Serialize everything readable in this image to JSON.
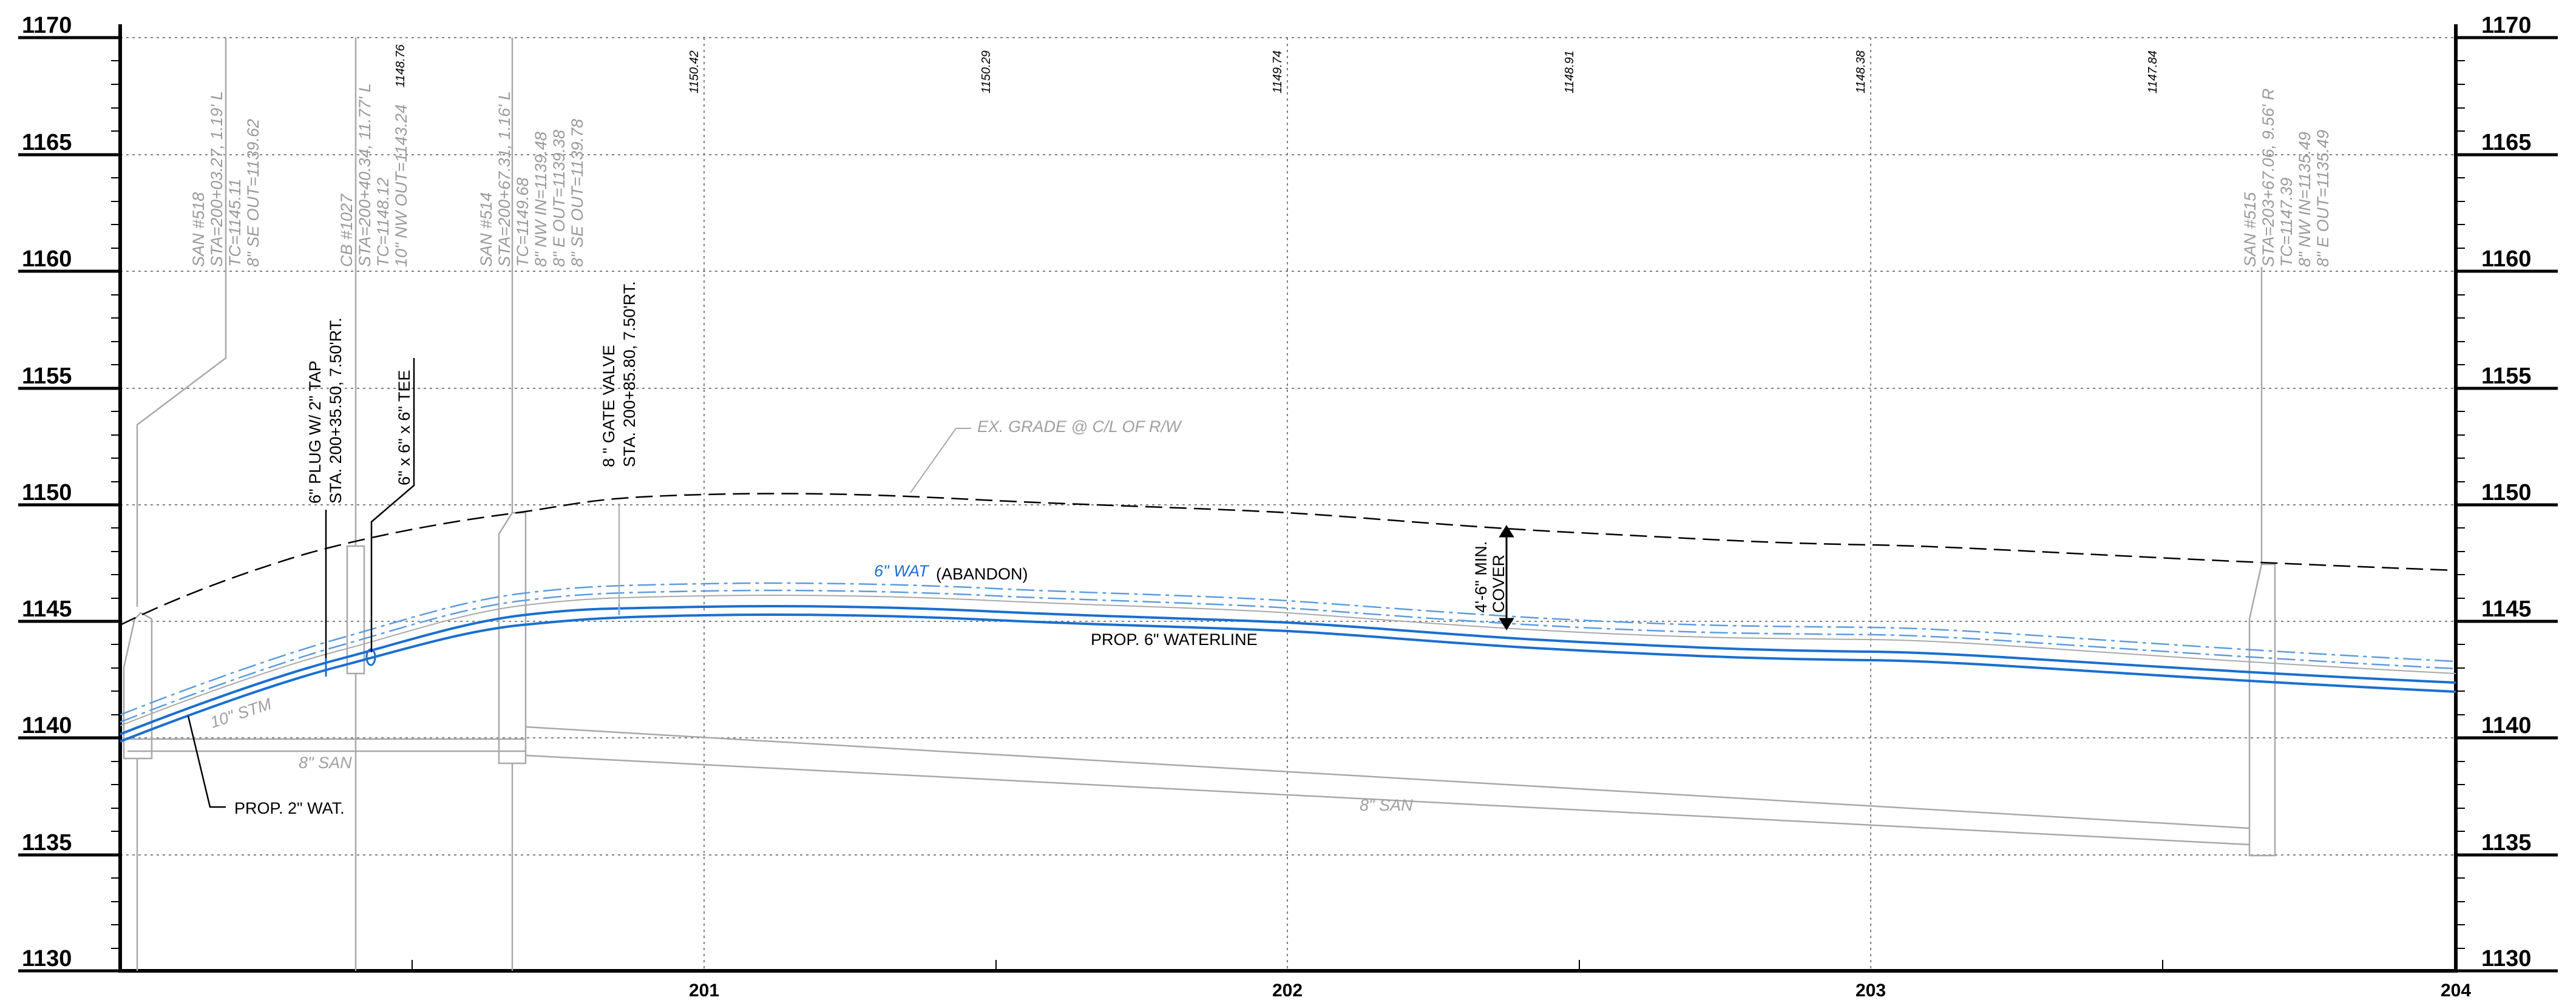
{
  "axes": {
    "elevations": [
      "1170",
      "1165",
      "1160",
      "1155",
      "1150",
      "1145",
      "1140",
      "1135",
      "1130"
    ],
    "stations": [
      "201",
      "202",
      "203",
      "204"
    ]
  },
  "top_elevations": [
    "1148.76",
    "1150.42",
    "1150.29",
    "1149.74",
    "1148.91",
    "1148.38",
    "1147.84"
  ],
  "structures": {
    "san518": [
      "SAN #518",
      "STA=200+03.27, 1.19' L",
      "TC=1145.11",
      "8\" SE OUT=1139.62"
    ],
    "cb1027": [
      "CB #1027",
      "STA=200+40.34, 11.77' L",
      "TC=1148.12",
      "10\" NW OUT=1143.24"
    ],
    "san514": [
      "SAN #514",
      "STA=200+67.31, 1.16' L",
      "TC=1149.68",
      "8\" NW IN=1139.48",
      "8\" E OUT=1139.38",
      "8\" SE OUT=1139.78"
    ],
    "san515": [
      "SAN #515",
      "STA=203+67.06, 9.56' R",
      "TC=1147.39",
      "8\" NW IN=1135.49",
      "8\" E OUT=1135.49"
    ]
  },
  "callouts": {
    "plug_line1": "6\" PLUG W/ 2\" TAP",
    "plug_line2": "STA. 200+35.50, 7.50'RT.",
    "tee": "6\" x 6\" x 6\" TEE",
    "valve_line1": "8 \" GATE VALVE",
    "valve_line2": "STA. 200+85.80, 7.50'RT.",
    "cover_line1": "4'-6\" MIN.",
    "cover_line2": "COVER",
    "ex_grade": "EX. GRADE @ C/L OF R/W",
    "wat_abandon_1": "6\" WAT",
    "wat_abandon_2": "(ABANDON)",
    "prop_waterline": "PROP. 6\" WATERLINE",
    "prop_2_wat": "PROP. 2\" WAT.",
    "stm_10": "10\" STM",
    "san_8_left": "8\" SAN",
    "san_8_right": "8\" SAN"
  },
  "colors": {
    "waterline": "#1a6fd0",
    "abandon": "#5b9be0",
    "grid": "#808080",
    "existing": "#b0b0b0",
    "frame": "#000000"
  }
}
